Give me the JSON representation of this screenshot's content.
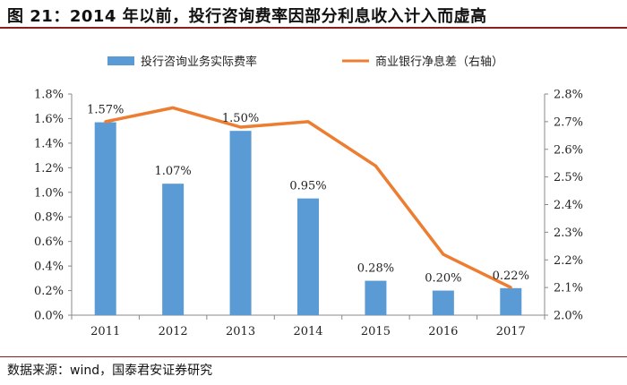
{
  "title": "图 21：2014 年以前，投行咨询费率因部分利息收入计入而虚高",
  "source": "数据来源：wind，国泰君安证券研究",
  "colors": {
    "bar": "#5b9bd5",
    "line": "#ed7d31",
    "accent": "#8a1f1f"
  },
  "chart_data": {
    "type": "bar+line",
    "categories": [
      "2011",
      "2012",
      "2013",
      "2014",
      "2015",
      "2016",
      "2017"
    ],
    "series": [
      {
        "name": "投行咨询业务实际费率",
        "type": "bar",
        "axis": "left",
        "values": [
          1.57,
          1.07,
          1.5,
          0.95,
          0.28,
          0.2,
          0.22
        ],
        "labels": [
          "1.57%",
          "1.07%",
          "1.50%",
          "0.95%",
          "0.28%",
          "0.20%",
          "0.22%"
        ]
      },
      {
        "name": "商业银行净息差（右轴）",
        "type": "line",
        "axis": "right",
        "values": [
          2.7,
          2.75,
          2.68,
          2.7,
          2.54,
          2.22,
          2.1
        ]
      }
    ],
    "y_left": {
      "min": 0,
      "max": 1.8,
      "step": 0.2,
      "ticks": [
        "0.0%",
        "0.2%",
        "0.4%",
        "0.6%",
        "0.8%",
        "1.0%",
        "1.2%",
        "1.4%",
        "1.6%",
        "1.8%"
      ]
    },
    "y_right": {
      "min": 2.0,
      "max": 2.8,
      "step": 0.1,
      "ticks": [
        "2.0%",
        "2.1%",
        "2.2%",
        "2.3%",
        "2.4%",
        "2.5%",
        "2.6%",
        "2.7%",
        "2.8%"
      ]
    },
    "legend": {
      "position": "top",
      "items": [
        "投行咨询业务实际费率",
        "商业银行净息差（右轴）"
      ]
    }
  }
}
